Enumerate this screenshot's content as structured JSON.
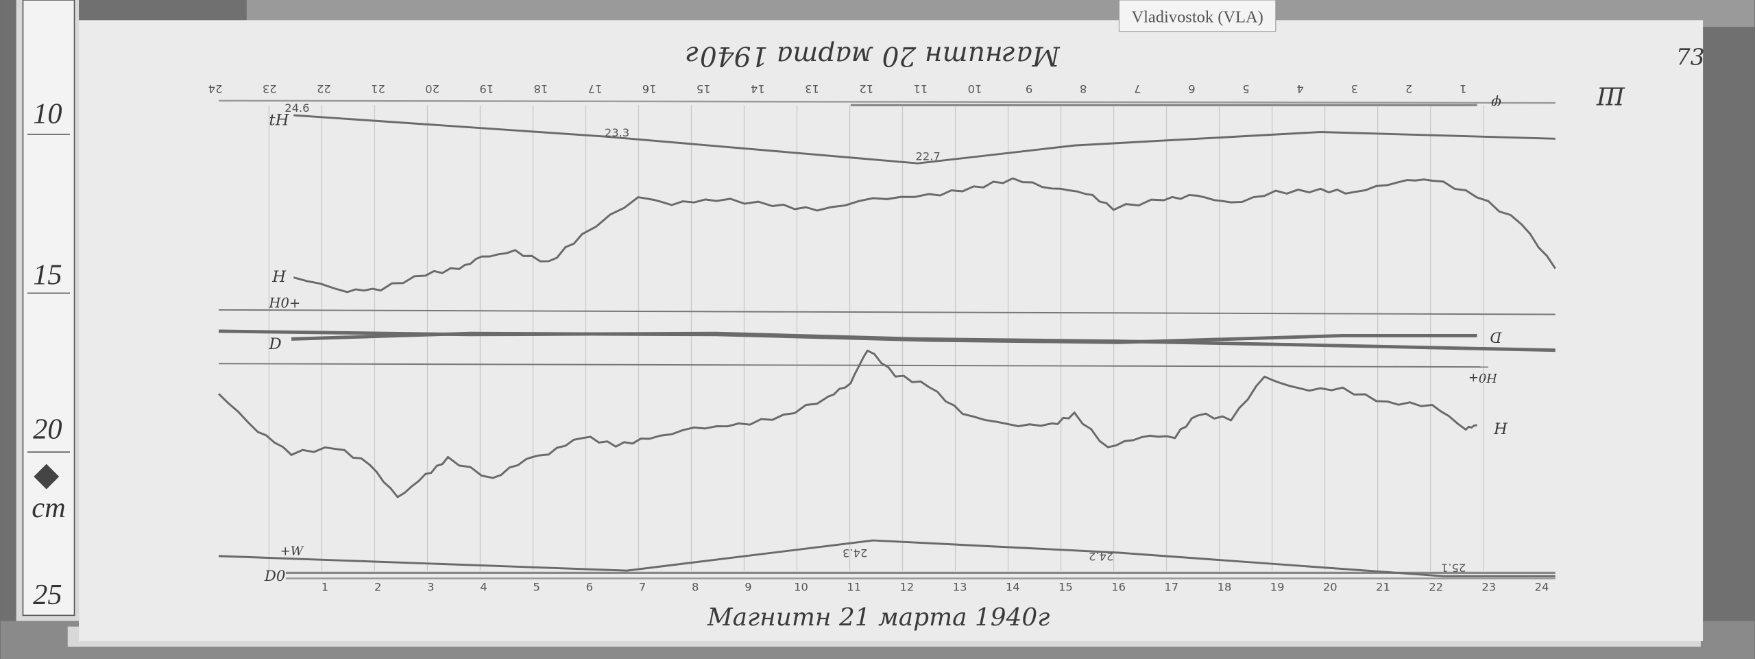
{
  "station_label": "Vladivostok (VLA)",
  "page_number": "73",
  "corner_note": "Ш",
  "ruler": {
    "marks": [
      "10",
      "15",
      "20",
      "25"
    ],
    "unit": "cm"
  },
  "top_record": {
    "title": "Магнитн 20 марта 1940г",
    "hour_labels": [
      "24",
      "23",
      "22",
      "21",
      "20",
      "19",
      "18",
      "17",
      "16",
      "15",
      "14",
      "13",
      "12",
      "11",
      "10",
      "9",
      "8",
      "7",
      "6",
      "5",
      "4",
      "3",
      "2",
      "1"
    ],
    "temperature_label": "tH",
    "temperature_values": [
      "24.6",
      "23.3",
      "22.7"
    ],
    "trace_label": "H",
    "baseline_label": "H0+",
    "d_label": "D",
    "start_label": "φ"
  },
  "bottom_record": {
    "title": "Магнитн 21 марта 1940г",
    "hour_labels": [
      "1",
      "2",
      "3",
      "4",
      "5",
      "6",
      "7",
      "8",
      "9",
      "10",
      "11",
      "12",
      "13",
      "14",
      "15",
      "16",
      "17",
      "18",
      "19",
      "20",
      "21",
      "22",
      "23",
      "24"
    ],
    "temperature_values": [
      "24.3",
      "24.2",
      "25.1"
    ],
    "trace_label": "H",
    "baseline_label": "H0+",
    "d_label": "D",
    "start_label": "D0",
    "w_label": "+W"
  },
  "colors": {
    "paper": "#ececec",
    "trace": "#6a6a6a",
    "background": "#6e6e6e"
  }
}
